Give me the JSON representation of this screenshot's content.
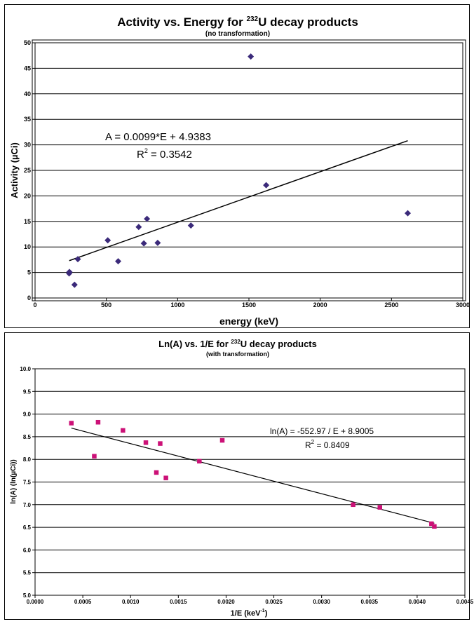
{
  "chart_data": [
    {
      "type": "scatter",
      "title_main": "Activity vs. Energy for ",
      "title_sup": "232",
      "title_rest": "U decay products",
      "subtitle": "(no transformation)",
      "xlabel": "energy (keV)",
      "ylabel": "Activity (µCi)",
      "xlim": [
        0,
        3000
      ],
      "ylim": [
        0,
        50
      ],
      "xticks": [
        "0",
        "500",
        "1000",
        "1500",
        "2000",
        "2500",
        "3000"
      ],
      "yticks": [
        "0",
        "5",
        "10",
        "15",
        "20",
        "25",
        "30",
        "35",
        "40",
        "45",
        "50"
      ],
      "grid": "horizontal",
      "marker_color": "#3b2a7a",
      "marker": "diamond",
      "points": [
        {
          "x": 239,
          "y": 4.8
        },
        {
          "x": 241,
          "y": 5.1
        },
        {
          "x": 277,
          "y": 2.6
        },
        {
          "x": 300,
          "y": 7.6
        },
        {
          "x": 510,
          "y": 11.3
        },
        {
          "x": 583,
          "y": 7.2
        },
        {
          "x": 727,
          "y": 13.9
        },
        {
          "x": 763,
          "y": 10.7
        },
        {
          "x": 785,
          "y": 15.5
        },
        {
          "x": 860,
          "y": 10.8
        },
        {
          "x": 1093,
          "y": 14.2
        },
        {
          "x": 1513,
          "y": 47.3
        },
        {
          "x": 1621,
          "y": 22.1
        },
        {
          "x": 2614,
          "y": 16.6
        }
      ],
      "trendline": {
        "x": [
          240,
          2614
        ],
        "slope": 0.0099,
        "intercept": 4.9383
      },
      "equation": "A = 0.0099*E + 4.9383",
      "r2_label": "R",
      "r2_sup": "2",
      "r2_value": " = 0.3542"
    },
    {
      "type": "scatter",
      "title_main": "Ln(A) vs. 1/E for ",
      "title_sup": "232",
      "title_rest": "U decay products",
      "subtitle": "(with transformation)",
      "xlabel": "1/E (keV",
      "xlabel_sup": "-1",
      "xlabel_end": ")",
      "ylabel": "ln(A) (ln(µCi))",
      "xlim": [
        0,
        0.0045
      ],
      "ylim": [
        5.0,
        10.0
      ],
      "xticks": [
        "0.0000",
        "0.0005",
        "0.0010",
        "0.0015",
        "0.0020",
        "0.0025",
        "0.0030",
        "0.0035",
        "0.0040",
        "0.0045"
      ],
      "yticks": [
        "5.0",
        "5.5",
        "6.0",
        "6.5",
        "7.0",
        "7.5",
        "8.0",
        "8.5",
        "9.0",
        "9.5",
        "10.0"
      ],
      "grid": "horizontal",
      "marker_color": "#cc1177",
      "marker": "square",
      "points": [
        {
          "x": 0.00038,
          "y": 8.8
        },
        {
          "x": 0.00062,
          "y": 8.07
        },
        {
          "x": 0.00066,
          "y": 8.82
        },
        {
          "x": 0.00092,
          "y": 8.64
        },
        {
          "x": 0.00116,
          "y": 8.37
        },
        {
          "x": 0.00127,
          "y": 7.71
        },
        {
          "x": 0.00131,
          "y": 8.35
        },
        {
          "x": 0.00137,
          "y": 7.59
        },
        {
          "x": 0.00172,
          "y": 7.96
        },
        {
          "x": 0.00196,
          "y": 8.42
        },
        {
          "x": 0.00333,
          "y": 7.0
        },
        {
          "x": 0.00361,
          "y": 6.94
        },
        {
          "x": 0.00415,
          "y": 6.58
        },
        {
          "x": 0.00418,
          "y": 6.52
        }
      ],
      "trendline": {
        "x": [
          0.00038,
          0.00418
        ],
        "slope": -552.97,
        "intercept": 8.9005
      },
      "equation": "ln(A) = -552.97 / E + 8.9005",
      "r2_label": "R",
      "r2_sup": "2",
      "r2_value": " = 0.8409"
    }
  ]
}
